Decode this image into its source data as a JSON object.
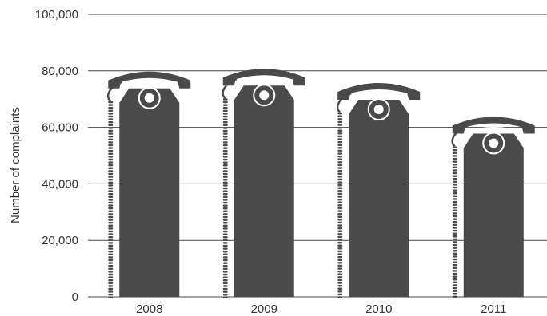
{
  "chart_data": {
    "type": "bar",
    "title": "",
    "xlabel": "",
    "ylabel": "Number of complaints",
    "categories": [
      "2008",
      "2009",
      "2010",
      "2011"
    ],
    "values": [
      80000,
      81000,
      76000,
      64000
    ],
    "ylim": [
      0,
      100000
    ],
    "yticks": [
      "0",
      "20,000",
      "40,000",
      "60,000",
      "80,000",
      "100,000"
    ],
    "grid": true,
    "bar_style": "telephone-handset",
    "colors": {
      "bar": "#4a4a4a",
      "cord": "#4a4a4a",
      "axis": "#444444",
      "text": "#333333"
    }
  }
}
